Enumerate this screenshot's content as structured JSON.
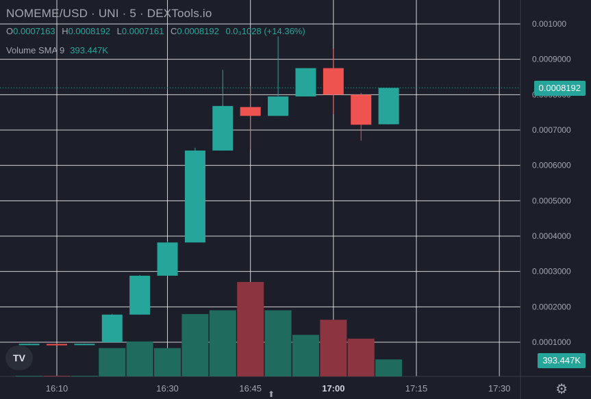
{
  "header": {
    "title": "NOMEME/USD · UNI · 5 · DEXTools.io",
    "ohlc": {
      "o_label": "O",
      "o": "0.0007163",
      "h_label": "H",
      "h": "0.0008192",
      "l_label": "L",
      "l": "0.0007161",
      "c_label": "C",
      "c": "0.0008192",
      "change": "0.0₃1028 (+14.36%)"
    },
    "volume_label": "Volume SMA 9",
    "volume_value": "393.447K"
  },
  "price_tag": "0.0008192",
  "volume_tag": "393.447K",
  "logo_text": "TV",
  "colors": {
    "up": "#26a69a",
    "down": "#ef5350",
    "up_vol": "#1f6b5e",
    "down_vol": "#8c3440",
    "bg": "#1c1e2a",
    "grid": "#e8e8e8"
  },
  "icons": {
    "settings": "gear-icon",
    "scroll": "chevron-up-icon"
  },
  "chart_data": {
    "type": "candlestick",
    "title": "NOMEME/USD · UNI · 5 · DEXTools.io",
    "y_ticks": [
      "0.001000",
      "0.0009000",
      "0.0008000",
      "0.0007000",
      "0.0006000",
      "0.0005000",
      "0.0004000",
      "0.0003000",
      "0.0002000",
      "0.0001000"
    ],
    "y_tick_values": [
      0.001,
      0.0009,
      0.0008,
      0.0007,
      0.0006,
      0.0005,
      0.0004,
      0.0003,
      0.0002,
      0.0001
    ],
    "x_ticks": [
      "16:10",
      "16:30",
      "16:45",
      "17:00",
      "17:15",
      "17:30"
    ],
    "x_tick_minutes": [
      970,
      990,
      1005,
      1020,
      1035,
      1050
    ],
    "candles": [
      {
        "t": 965,
        "o": 9.5e-05,
        "h": 9.6e-05,
        "l": 9.4e-05,
        "c": 9.55e-05
      },
      {
        "t": 970,
        "o": 9.5e-05,
        "h": 9.6e-05,
        "l": 9.4e-05,
        "c": 9.45e-05
      },
      {
        "t": 975,
        "o": 9.5e-05,
        "h": 9.6e-05,
        "l": 9.4e-05,
        "c": 9.55e-05
      },
      {
        "t": 980,
        "o": 0.0001,
        "h": 0.00018,
        "l": 0.0001,
        "c": 0.000178
      },
      {
        "t": 985,
        "o": 0.000178,
        "h": 0.00029,
        "l": 0.000178,
        "c": 0.000288
      },
      {
        "t": 990,
        "o": 0.000288,
        "h": 0.000385,
        "l": 0.000288,
        "c": 0.000382
      },
      {
        "t": 995,
        "o": 0.000382,
        "h": 0.00065,
        "l": 0.000382,
        "c": 0.000642
      },
      {
        "t": 1000,
        "o": 0.000642,
        "h": 0.00087,
        "l": 0.000642,
        "c": 0.000768
      },
      {
        "t": 1005,
        "o": 0.000765,
        "h": 0.000825,
        "l": 0.000645,
        "c": 0.00074
      },
      {
        "t": 1010,
        "o": 0.00074,
        "h": 0.000965,
        "l": 0.00074,
        "c": 0.000795
      },
      {
        "t": 1015,
        "o": 0.000795,
        "h": 0.000875,
        "l": 0.000795,
        "c": 0.000875
      },
      {
        "t": 1020,
        "o": 0.000875,
        "h": 0.00093,
        "l": 0.000745,
        "c": 0.0008
      },
      {
        "t": 1025,
        "o": 0.0008,
        "h": 0.000805,
        "l": 0.00067,
        "c": 0.000715
      },
      {
        "t": 1030,
        "o": 0.0007163,
        "h": 0.0008192,
        "l": 0.0007161,
        "c": 0.0008192
      }
    ],
    "volume_relative": [
      0.005,
      0.005,
      0.005,
      0.3,
      0.37,
      0.3,
      0.66,
      0.7,
      1.0,
      0.7,
      0.44,
      0.6,
      0.4,
      0.18
    ]
  }
}
